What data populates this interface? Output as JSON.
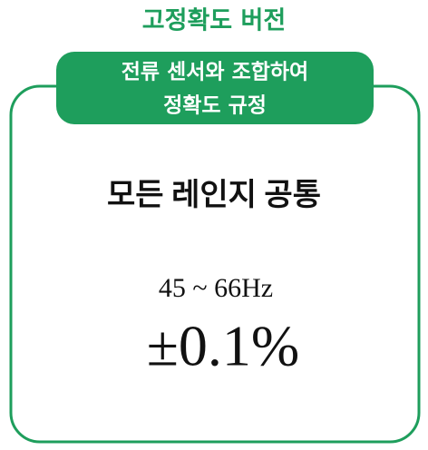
{
  "title": "고정확도 버전",
  "badge": {
    "lines": [
      "전류 센서와 조합하여",
      "정확도 규정"
    ]
  },
  "heading": "모든 레인지 공통",
  "frequency": "45 ~ 66Hz",
  "accuracy": "±0.1%"
}
